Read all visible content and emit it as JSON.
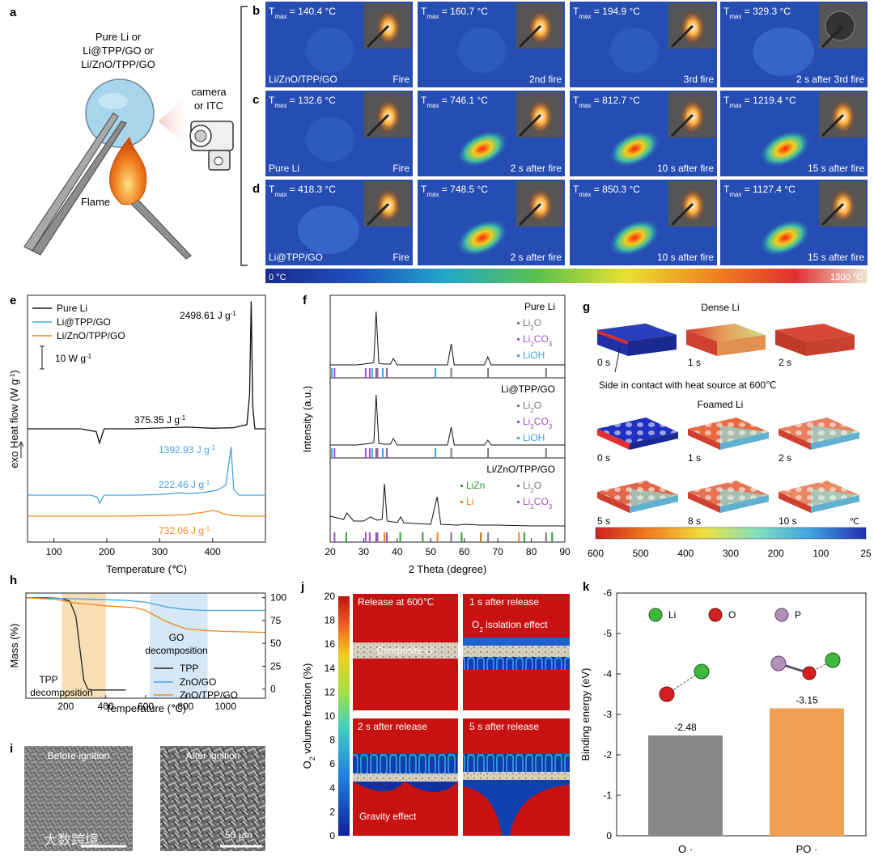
{
  "panels": {
    "a": {
      "letter": "a",
      "sample_label": [
        "Pure Li or",
        "Li@TPP/GO or",
        "Li/ZnO/TPP/GO"
      ],
      "camera_label": [
        "camera",
        "or ITC"
      ],
      "flame_label": "Flame"
    },
    "b": {
      "letter": "b",
      "sample": "Li/ZnO/TPP/GO",
      "frames": [
        {
          "tmax": "= 140.4 °C",
          "caption": "Fire"
        },
        {
          "tmax": "= 160.7 °C",
          "caption": "2nd fire"
        },
        {
          "tmax": "= 194.9 °C",
          "caption": "3rd fire"
        },
        {
          "tmax": "= 329.3 °C",
          "caption": "2 s after 3rd fire"
        }
      ]
    },
    "c": {
      "letter": "c",
      "sample": "Pure Li",
      "frames": [
        {
          "tmax": "= 132.6 °C",
          "caption": "Fire"
        },
        {
          "tmax": "= 746.1 °C",
          "caption": "2 s after fire"
        },
        {
          "tmax": "= 812.7 °C",
          "caption": "10 s after fire"
        },
        {
          "tmax": "= 1219.4 °C",
          "caption": "15 s after fire"
        }
      ]
    },
    "d": {
      "letter": "d",
      "sample": "Li@TPP/GO",
      "frames": [
        {
          "tmax": "= 418.3 °C",
          "caption": "Fire"
        },
        {
          "tmax": "= 748.5 °C",
          "caption": "2 s after fire"
        },
        {
          "tmax": "= 850.3 °C",
          "caption": "10 s after fire"
        },
        {
          "tmax": "= 1127.4 °C",
          "caption": "15 s after fire"
        }
      ]
    },
    "bcd_scale": {
      "min": "0 °C",
      "max": "1300 °C"
    },
    "f_sections": [
      {
        "title": "Pure Li",
        "legend": [
          {
            "name": "Li2O",
            "color": "#777777"
          },
          {
            "name": "Li2CO3",
            "color": "#a050c8"
          },
          {
            "name": "LiOH",
            "color": "#40a0e0"
          }
        ]
      },
      {
        "title": "Li@TPP/GO",
        "legend": [
          {
            "name": "Li2O",
            "color": "#777777"
          },
          {
            "name": "Li2CO3",
            "color": "#a050c8"
          },
          {
            "name": "LiOH",
            "color": "#40a0e0"
          }
        ]
      },
      {
        "title": "Li/ZnO/TPP/GO",
        "legend": [
          {
            "name": "LiZn",
            "color": "#2ca02c"
          },
          {
            "name": "Li2O",
            "color": "#777777"
          },
          {
            "name": "Li",
            "color": "#f08020"
          },
          {
            "name": "Li2CO3",
            "color": "#a050c8"
          }
        ]
      }
    ],
    "g": {
      "letter": "g",
      "dense_title": "Dense Li",
      "foamed_title": "Foamed Li",
      "dense_times": [
        "0 s",
        "1 s",
        "2 s"
      ],
      "foamed_times": [
        "0 s",
        "1 s",
        "2 s",
        "5 s",
        "8 s",
        "10 s"
      ],
      "note": "Side in contact with heat source at 600℃",
      "scale_unit": "℃",
      "scale_ticks": [
        "600",
        "500",
        "400",
        "300",
        "200",
        "100",
        "25"
      ]
    },
    "i": {
      "letter": "i",
      "left": "Before ignition",
      "right": "After ignition",
      "scalebar": "50 μm",
      "watermark": "大数跨境"
    },
    "j": {
      "letter": "j",
      "ylabel": "O2 volume fraction (%)",
      "ticks": [
        "20",
        "18",
        "16",
        "14",
        "12",
        "10",
        "8",
        "6",
        "4",
        "2",
        "0"
      ],
      "frames": [
        "Release at 600℃",
        "1 s after release",
        "2 s after release",
        "5 s after release"
      ],
      "annotations": {
        "composite": "Composite Li",
        "o2": "O2 isolation effect",
        "gravity": "Gravity effect"
      }
    },
    "k": {
      "letter": "k",
      "legend": [
        {
          "name": "Li",
          "color": "#3fb83f"
        },
        {
          "name": "O",
          "color": "#d42020"
        },
        {
          "name": "P",
          "color": "#b090b8"
        }
      ]
    }
  },
  "chart_data": [
    {
      "id": "e",
      "type": "line",
      "title": "",
      "xlabel": "Temperature (℃)",
      "ylabel": "exo Heat flow (W g-1)",
      "xlim": [
        50,
        500
      ],
      "xticks": [
        100,
        200,
        300,
        400
      ],
      "scale_bar": "10 W g-1",
      "series": [
        {
          "name": "Pure Li",
          "color": "#111111",
          "x": [
            50,
            150,
            180,
            186,
            195,
            250,
            300,
            350,
            400,
            440,
            465,
            470,
            473,
            476,
            480,
            500
          ],
          "y": [
            0,
            0,
            -1,
            -5,
            0,
            0,
            0.3,
            0.6,
            0.2,
            0.4,
            1.5,
            12,
            45,
            8,
            0,
            0
          ]
        },
        {
          "name": "Li@TPP/GO",
          "color": "#4aa3df",
          "x": [
            50,
            170,
            182,
            186,
            195,
            250,
            300,
            340,
            350,
            380,
            410,
            425,
            432,
            435,
            440,
            450,
            500
          ],
          "y": [
            0,
            0,
            -1,
            -4,
            0,
            0,
            0.3,
            1.2,
            0.8,
            1.2,
            2.5,
            5,
            18,
            24,
            3,
            0,
            0
          ]
        },
        {
          "name": "Li/ZnO/TPP/GO",
          "color": "#ef8a1e",
          "x": [
            50,
            200,
            300,
            350,
            380,
            400,
            410,
            420,
            440,
            470,
            500
          ],
          "y": [
            0,
            0,
            0.3,
            0.8,
            1.8,
            2.8,
            2.4,
            1.2,
            0.3,
            0,
            0
          ]
        }
      ],
      "annotations": [
        "2498.61 J g-1",
        "375.35 J g-1",
        "1392.93 J g-1",
        "222.46 J g-1",
        "732.06 J g-1"
      ]
    },
    {
      "id": "f",
      "type": "line",
      "title": "",
      "xlabel": "2 Theta (degree)",
      "ylabel": "Intensity (a.u.)",
      "xlim": [
        20,
        90
      ],
      "xticks": [
        20,
        30,
        40,
        50,
        60,
        70,
        80,
        90
      ],
      "series": [
        {
          "name": "Pure Li",
          "color": "#111111",
          "x": [
            20,
            24,
            28,
            30,
            32,
            33,
            33.7,
            34.5,
            36,
            38,
            38.8,
            40,
            50,
            55,
            56.1,
            57,
            60,
            66,
            67,
            68,
            80,
            90
          ],
          "y": [
            4,
            4,
            4,
            5,
            6,
            7,
            70,
            6,
            5,
            5,
            12,
            4,
            4,
            4,
            30,
            4,
            4,
            4,
            14,
            4,
            4,
            4
          ]
        },
        {
          "name": "Li@TPP/GO",
          "color": "#111111",
          "x": [
            20,
            24,
            28,
            30,
            32,
            33,
            33.7,
            34.5,
            36,
            38,
            38.8,
            40,
            50,
            55,
            56.1,
            57,
            60,
            66,
            67,
            68,
            80,
            90
          ],
          "y": [
            6,
            6,
            6,
            7,
            8,
            9,
            68,
            8,
            7,
            7,
            14,
            6,
            6,
            6,
            28,
            6,
            6,
            6,
            12,
            6,
            6,
            6
          ]
        },
        {
          "name": "Li/ZnO/TPP/GO",
          "color": "#111111",
          "x": [
            20,
            22,
            24,
            25,
            27,
            30,
            32,
            34,
            35.5,
            36.2,
            37,
            40,
            41,
            42,
            45,
            50,
            51.9,
            53,
            58,
            60,
            65,
            70,
            80,
            90
          ],
          "y": [
            18,
            16,
            14,
            22,
            12,
            12,
            17,
            13,
            14,
            58,
            12,
            10,
            17,
            10,
            9,
            8,
            42,
            8,
            7,
            8,
            7,
            7,
            6,
            6
          ]
        }
      ],
      "reference_ticks": [
        {
          "section": 0,
          "color": "#777777",
          "x": [
            33.7,
            56.1,
            67.1,
            84.4
          ]
        },
        {
          "section": 0,
          "color": "#a050c8",
          "x": [
            21.3,
            30.6,
            31.8,
            34.1,
            36.9
          ]
        },
        {
          "section": 0,
          "color": "#40a0e0",
          "x": [
            20.5,
            32.5,
            35.7,
            51.4
          ]
        },
        {
          "section": 1,
          "color": "#777777",
          "x": [
            33.7,
            56.1,
            67.1,
            84.4
          ]
        },
        {
          "section": 1,
          "color": "#a050c8",
          "x": [
            21.3,
            30.6,
            31.8,
            34.1,
            36.9
          ]
        },
        {
          "section": 1,
          "color": "#40a0e0",
          "x": [
            20.5,
            32.5,
            35.7,
            51.4
          ]
        },
        {
          "section": 2,
          "color": "#2ca02c",
          "x": [
            24.8,
            40.9,
            47.6,
            59.2,
            64.9,
            77.9,
            86.2
          ]
        },
        {
          "section": 2,
          "color": "#777777",
          "x": [
            33.7,
            56.1,
            67.1,
            84.4
          ]
        },
        {
          "section": 2,
          "color": "#f08020",
          "x": [
            36.2,
            52.0,
            65.0,
            76.3
          ]
        },
        {
          "section": 2,
          "color": "#a050c8",
          "x": [
            21.3,
            30.6,
            31.8,
            34.1,
            36.9
          ]
        }
      ]
    },
    {
      "id": "h",
      "type": "line",
      "title": "",
      "xlabel": "Temperature (℃)",
      "ylabel": "Mass (%)",
      "xlim": [
        0,
        1200
      ],
      "ylim": [
        -10,
        105
      ],
      "xticks": [
        200,
        400,
        600,
        800,
        1000
      ],
      "yticks": [
        0,
        25,
        50,
        75,
        100
      ],
      "series": [
        {
          "name": "TPP",
          "color": "#222222",
          "x": [
            0,
            100,
            180,
            220,
            250,
            270,
            290,
            310,
            330,
            500
          ],
          "y": [
            100,
            100,
            99,
            96,
            80,
            45,
            10,
            0,
            -1,
            -1
          ]
        },
        {
          "name": "ZnO/GO",
          "color": "#4aa3df",
          "x": [
            0,
            200,
            500,
            600,
            700,
            800,
            900,
            1200
          ],
          "y": [
            100,
            99,
            97,
            95,
            90,
            87,
            86,
            86
          ]
        },
        {
          "name": "ZnO/TPP/GO",
          "color": "#ef8a1e",
          "x": [
            0,
            150,
            250,
            400,
            550,
            600,
            700,
            800,
            900,
            1000,
            1200
          ],
          "y": [
            100,
            98,
            94,
            91,
            89,
            86,
            74,
            66,
            64,
            63,
            62
          ]
        }
      ],
      "shaded_regions": [
        {
          "label": "TPP decomposition",
          "x": [
            180,
            400
          ],
          "color": "#f6d9a8"
        },
        {
          "label": "GO decomposition",
          "x": [
            620,
            910
          ],
          "color": "#cfe4f5"
        }
      ]
    },
    {
      "id": "k",
      "type": "bar",
      "title": "",
      "xlabel": "",
      "ylabel": "Binding energy (eV)",
      "categories": [
        "O ·",
        "PO ·"
      ],
      "values": [
        -2.48,
        -3.15
      ],
      "bar_colors": [
        "#888888",
        "#f0a050"
      ],
      "ylim": [
        0,
        -6
      ],
      "yticks": [
        0,
        -1,
        -2,
        -3,
        -4,
        -5,
        -6
      ]
    }
  ]
}
